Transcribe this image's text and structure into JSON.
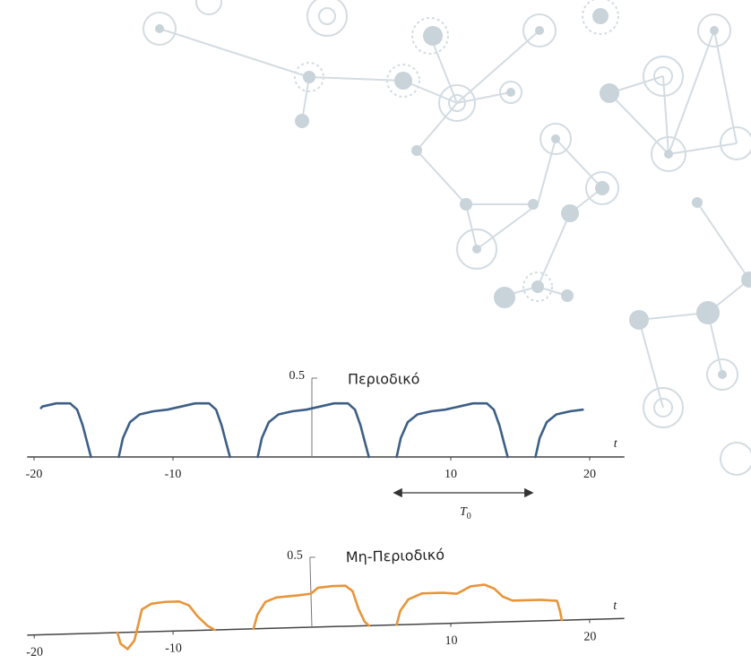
{
  "chart_data": [
    {
      "type": "line",
      "title": "Περιοδικό",
      "x_label": "t",
      "color": "#3d5f86",
      "x": [
        -19.5,
        -19.4,
        -18.4,
        -17.4,
        -16.9,
        -16.5,
        -16.2,
        -15.9,
        null,
        -13.9,
        -13.6,
        -13.1,
        -12.4,
        -11.4,
        -10.4,
        -9.4,
        -8.4,
        -7.4,
        -6.9,
        -6.5,
        -6.2,
        -5.9,
        null,
        -3.9,
        -3.6,
        -3.1,
        -2.4,
        -1.4,
        -0.4,
        0.6,
        1.6,
        2.6,
        3.1,
        3.5,
        3.8,
        4.1,
        null,
        6.1,
        6.4,
        6.9,
        7.6,
        8.6,
        9.6,
        10.6,
        11.6,
        12.6,
        13.1,
        13.5,
        13.8,
        14.1,
        null,
        16.1,
        16.4,
        16.9,
        17.6,
        18.6,
        19.5
      ],
      "values": [
        0.31,
        0.32,
        0.34,
        0.34,
        0.3,
        0.2,
        0.1,
        0,
        null,
        0,
        0.12,
        0.22,
        0.27,
        0.29,
        0.3,
        0.32,
        0.34,
        0.34,
        0.3,
        0.2,
        0.1,
        0,
        null,
        0,
        0.12,
        0.22,
        0.27,
        0.29,
        0.3,
        0.32,
        0.34,
        0.34,
        0.3,
        0.2,
        0.1,
        0,
        null,
        0,
        0.12,
        0.22,
        0.27,
        0.29,
        0.3,
        0.32,
        0.34,
        0.34,
        0.3,
        0.2,
        0.1,
        0,
        null,
        0,
        0.12,
        0.22,
        0.27,
        0.29,
        0.3
      ],
      "xlim": [
        -20.5,
        22.5
      ],
      "xticks": [
        -20,
        -10,
        10,
        20
      ],
      "ylim": [
        0,
        0.5
      ],
      "yticks": [
        0.5
      ],
      "annotation": {
        "text": "T",
        "subscript": "0",
        "x": [
          5.9,
          15.9
        ]
      }
    },
    {
      "type": "line",
      "title": "Μη-Περιοδικό",
      "x_label": "t",
      "color": "#e8953a",
      "x": [
        -14.0,
        -13.8,
        -13.3,
        -12.8,
        -12.5,
        -12.2,
        -11.5,
        -10.5,
        -9.5,
        -8.8,
        -8.2,
        -7.5,
        -7.0,
        null,
        -4.2,
        -3.9,
        -3.3,
        -2.5,
        -1.0,
        0,
        0.5,
        1.5,
        2.5,
        3.0,
        3.4,
        3.8,
        4.1,
        null,
        6.1,
        6.4,
        7.0,
        8.0,
        9.5,
        10.5,
        11.5,
        12.5,
        13.2,
        13.8,
        14.5,
        16.5,
        17.7,
        17.9,
        18.0
      ],
      "values": [
        0,
        -0.08,
        -0.12,
        -0.06,
        0.05,
        0.16,
        0.2,
        0.21,
        0.21,
        0.18,
        0.1,
        0.03,
        0,
        null,
        0,
        0.1,
        0.19,
        0.22,
        0.23,
        0.24,
        0.28,
        0.29,
        0.29,
        0.25,
        0.12,
        0.03,
        0,
        null,
        0,
        0.1,
        0.18,
        0.22,
        0.22,
        0.21,
        0.26,
        0.27,
        0.24,
        0.18,
        0.15,
        0.15,
        0.14,
        0.06,
        0
      ],
      "xlim": [
        -20.5,
        22.5
      ],
      "xticks": [
        -20,
        -10,
        10,
        20
      ],
      "ylim": [
        -0.15,
        0.5
      ],
      "yticks": [
        0.5
      ]
    }
  ]
}
